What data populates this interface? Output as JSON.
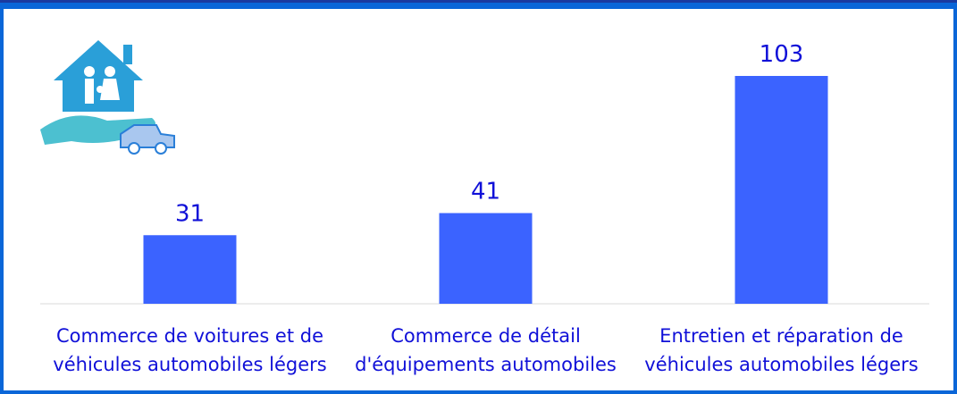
{
  "chart_data": {
    "type": "bar",
    "categories": [
      "Commerce de voitures et de véhicules automobiles légers",
      "Commerce de détail d'équipements automobiles",
      "Entretien et réparation de véhicules automobiles légers"
    ],
    "values": [
      31,
      41,
      103
    ],
    "color": "#3b63ff",
    "label_color": "#1010d8"
  }
}
